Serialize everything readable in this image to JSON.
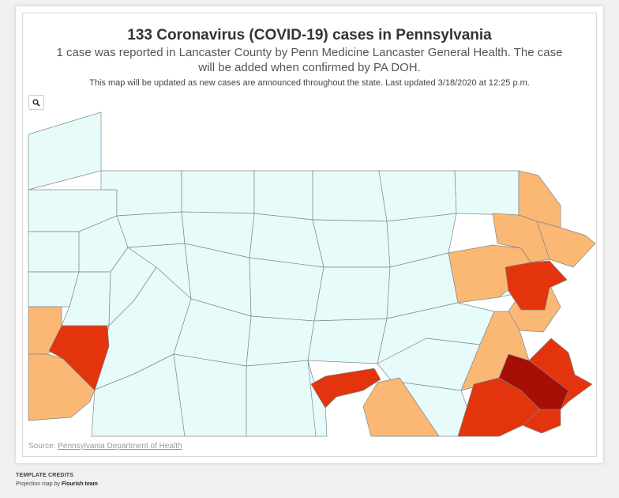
{
  "title": "133 Coronavirus (COVID-19) cases in Pennsylvania",
  "subtitle": "1 case was reported in Lancaster County by Penn Medicine Lancaster General Health. The case will be added when confirmed by PA DOH.",
  "note": "This map will be updated as new cases are announced throughout the state. Last updated 3/18/2020 at 12:25 p.m.",
  "zoom_icon": "search-icon",
  "source": {
    "label": "Source:",
    "link_text": "Pennsylvania Department of Health"
  },
  "credits": {
    "heading": "TEMPLATE CREDITS",
    "prefix": "Projection map by",
    "author": "Flourish team"
  },
  "colors": {
    "none": "#e8fbfb",
    "low": "#fbb774",
    "mid": "#e3340d",
    "high": "#a50f06",
    "border": "#7f8a8a"
  }
}
